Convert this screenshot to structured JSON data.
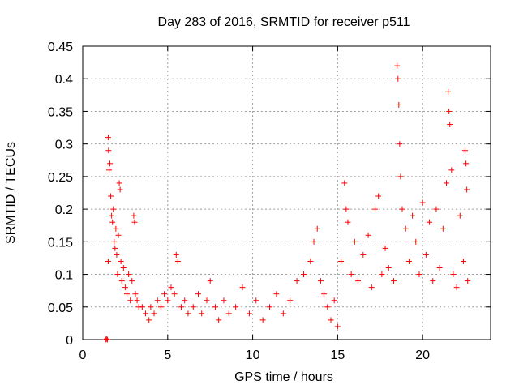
{
  "chart_data": {
    "type": "scatter",
    "title": "Day 283 of 2016, SRMTID for receiver p511",
    "xlabel": "GPS time / hours",
    "ylabel": "SRMTID / TECUs",
    "xlim": [
      0,
      24
    ],
    "ylim": [
      0,
      0.45
    ],
    "xticks": [
      0,
      5,
      10,
      15,
      20
    ],
    "xtick_labels": [
      "0",
      "5",
      "10",
      "15",
      "20"
    ],
    "yticks": [
      0,
      0.05,
      0.1,
      0.15,
      0.2,
      0.25,
      0.3,
      0.35,
      0.4,
      0.45
    ],
    "ytick_labels": [
      "0",
      "0.05",
      "0.1",
      "0.15",
      "0.2",
      "0.25",
      "0.3",
      "0.35",
      "0.4",
      "0.45"
    ],
    "grid": true,
    "marker": "+",
    "color": "#ff0000",
    "series": [
      {
        "name": "SRMTID",
        "points": [
          [
            1.35,
            0.0
          ],
          [
            1.4,
            0.001
          ],
          [
            1.45,
            0.0
          ],
          [
            1.5,
            0.12
          ],
          [
            1.5,
            0.31
          ],
          [
            1.52,
            0.29
          ],
          [
            1.55,
            0.26
          ],
          [
            1.6,
            0.27
          ],
          [
            1.65,
            0.22
          ],
          [
            1.7,
            0.19
          ],
          [
            1.75,
            0.18
          ],
          [
            1.8,
            0.2
          ],
          [
            1.85,
            0.15
          ],
          [
            1.9,
            0.14
          ],
          [
            1.95,
            0.17
          ],
          [
            2.0,
            0.13
          ],
          [
            2.05,
            0.1
          ],
          [
            2.1,
            0.16
          ],
          [
            2.15,
            0.24
          ],
          [
            2.2,
            0.23
          ],
          [
            2.25,
            0.12
          ],
          [
            2.3,
            0.09
          ],
          [
            2.4,
            0.11
          ],
          [
            2.5,
            0.08
          ],
          [
            2.6,
            0.07
          ],
          [
            2.7,
            0.1
          ],
          [
            2.8,
            0.06
          ],
          [
            2.9,
            0.09
          ],
          [
            3.0,
            0.19
          ],
          [
            3.05,
            0.18
          ],
          [
            3.1,
            0.07
          ],
          [
            3.2,
            0.06
          ],
          [
            3.3,
            0.05
          ],
          [
            3.5,
            0.05
          ],
          [
            3.7,
            0.04
          ],
          [
            3.9,
            0.03
          ],
          [
            4.0,
            0.05
          ],
          [
            4.2,
            0.04
          ],
          [
            4.4,
            0.06
          ],
          [
            4.6,
            0.05
          ],
          [
            4.8,
            0.07
          ],
          [
            5.0,
            0.06
          ],
          [
            5.2,
            0.08
          ],
          [
            5.4,
            0.07
          ],
          [
            5.5,
            0.13
          ],
          [
            5.6,
            0.12
          ],
          [
            5.8,
            0.05
          ],
          [
            6.0,
            0.06
          ],
          [
            6.2,
            0.04
          ],
          [
            6.5,
            0.05
          ],
          [
            6.8,
            0.07
          ],
          [
            7.0,
            0.04
          ],
          [
            7.3,
            0.06
          ],
          [
            7.5,
            0.09
          ],
          [
            7.8,
            0.05
          ],
          [
            8.0,
            0.03
          ],
          [
            8.3,
            0.06
          ],
          [
            8.6,
            0.04
          ],
          [
            9.0,
            0.05
          ],
          [
            9.4,
            0.08
          ],
          [
            9.8,
            0.04
          ],
          [
            10.2,
            0.06
          ],
          [
            10.6,
            0.03
          ],
          [
            11.0,
            0.05
          ],
          [
            11.4,
            0.07
          ],
          [
            11.8,
            0.04
          ],
          [
            12.2,
            0.06
          ],
          [
            12.6,
            0.09
          ],
          [
            13.0,
            0.1
          ],
          [
            13.4,
            0.12
          ],
          [
            13.6,
            0.15
          ],
          [
            13.8,
            0.17
          ],
          [
            14.0,
            0.09
          ],
          [
            14.2,
            0.07
          ],
          [
            14.4,
            0.05
          ],
          [
            14.6,
            0.03
          ],
          [
            14.8,
            0.06
          ],
          [
            15.0,
            0.02
          ],
          [
            15.2,
            0.12
          ],
          [
            15.4,
            0.24
          ],
          [
            15.5,
            0.2
          ],
          [
            15.6,
            0.18
          ],
          [
            15.8,
            0.1
          ],
          [
            16.0,
            0.15
          ],
          [
            16.2,
            0.09
          ],
          [
            16.5,
            0.13
          ],
          [
            16.8,
            0.16
          ],
          [
            17.0,
            0.08
          ],
          [
            17.2,
            0.2
          ],
          [
            17.4,
            0.22
          ],
          [
            17.6,
            0.1
          ],
          [
            17.8,
            0.14
          ],
          [
            18.0,
            0.11
          ],
          [
            18.3,
            0.09
          ],
          [
            18.5,
            0.42
          ],
          [
            18.55,
            0.4
          ],
          [
            18.6,
            0.36
          ],
          [
            18.65,
            0.3
          ],
          [
            18.7,
            0.25
          ],
          [
            18.8,
            0.2
          ],
          [
            19.0,
            0.17
          ],
          [
            19.2,
            0.12
          ],
          [
            19.4,
            0.19
          ],
          [
            19.6,
            0.15
          ],
          [
            19.8,
            0.1
          ],
          [
            20.0,
            0.21
          ],
          [
            20.2,
            0.13
          ],
          [
            20.4,
            0.18
          ],
          [
            20.6,
            0.09
          ],
          [
            20.8,
            0.2
          ],
          [
            21.0,
            0.11
          ],
          [
            21.2,
            0.17
          ],
          [
            21.4,
            0.24
          ],
          [
            21.5,
            0.38
          ],
          [
            21.55,
            0.35
          ],
          [
            21.6,
            0.33
          ],
          [
            21.7,
            0.26
          ],
          [
            21.8,
            0.1
          ],
          [
            22.0,
            0.08
          ],
          [
            22.2,
            0.19
          ],
          [
            22.4,
            0.12
          ],
          [
            22.5,
            0.29
          ],
          [
            22.55,
            0.27
          ],
          [
            22.6,
            0.23
          ],
          [
            22.65,
            0.09
          ]
        ]
      }
    ]
  }
}
